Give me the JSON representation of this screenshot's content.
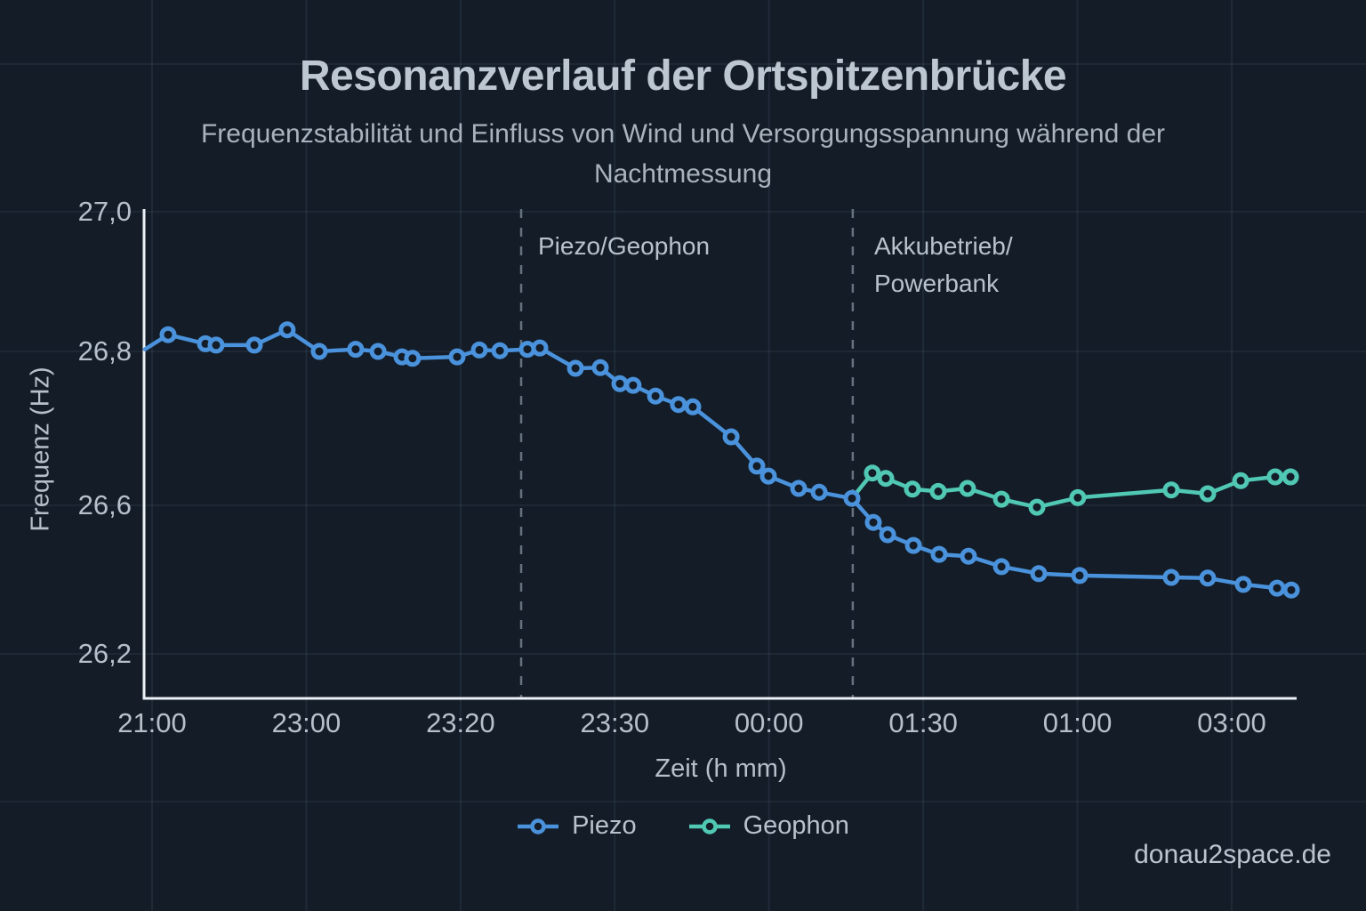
{
  "page": {
    "background": "#131c27",
    "watermark": "donau2space.de"
  },
  "chart_data": {
    "type": "line",
    "title": "Resonanzverlauf der Ortspitzenbrücke",
    "subtitle_lines": [
      "Frequenzstabilität und Einfluss von Wind und Versorgungsspannung während der",
      "Nachtmessung"
    ],
    "xlabel": "Zeit (h mm)",
    "ylabel": "Frequenz (Hz)",
    "x_tick_labels": [
      "21:00",
      "23:00",
      "23:20",
      "23:30",
      "00:00",
      "01:30",
      "01:00",
      "03:00"
    ],
    "y_tick_labels": [
      "27,0",
      "26,8",
      "26,6",
      "26,2"
    ],
    "y_tick_values": [
      27.0,
      26.8,
      26.6,
      26.2
    ],
    "x_encoding": "t = x-axis tick index (0 = 21:00 tick, 7 = 03:00 tick); hz = Frequenz in Hz",
    "grid": true,
    "legend_position": "bottom-center",
    "colors": {
      "piezo": "#4a92dc",
      "geophon": "#50c8b4",
      "axis": "#eef2f6",
      "dashed": "#67727f",
      "text": "#b8c2cc"
    },
    "annotations": [
      {
        "t": 2.393,
        "lines": [
          "Piezo/Geophon"
        ]
      },
      {
        "t": 4.543,
        "lines": [
          "Akkubetrieb/",
          "Powerbank"
        ]
      }
    ],
    "series": [
      {
        "name": "Piezo",
        "color": "#4a92dc",
        "skip_first_marker": true,
        "points": [
          [
            -0.046,
            26.803
          ],
          [
            0.104,
            26.824
          ],
          [
            0.346,
            26.811
          ],
          [
            0.415,
            26.809
          ],
          [
            0.663,
            26.809
          ],
          [
            0.876,
            26.831
          ],
          [
            1.084,
            26.8
          ],
          [
            1.32,
            26.803
          ],
          [
            1.465,
            26.8
          ],
          [
            1.62,
            26.793
          ],
          [
            1.689,
            26.791
          ],
          [
            1.978,
            26.793
          ],
          [
            2.122,
            26.802
          ],
          [
            2.255,
            26.801
          ],
          [
            2.433,
            26.803
          ],
          [
            2.514,
            26.805
          ],
          [
            2.745,
            26.778
          ],
          [
            2.906,
            26.779
          ],
          [
            3.033,
            26.758
          ],
          [
            3.119,
            26.756
          ],
          [
            3.264,
            26.742
          ],
          [
            3.413,
            26.731
          ],
          [
            3.506,
            26.728
          ],
          [
            3.754,
            26.689
          ],
          [
            3.921,
            26.651
          ],
          [
            3.996,
            26.638
          ],
          [
            4.192,
            26.622
          ],
          [
            4.325,
            26.617
          ],
          [
            4.538,
            26.609
          ],
          [
            4.676,
            26.554
          ],
          [
            4.769,
            26.521
          ],
          [
            4.936,
            26.492
          ],
          [
            5.103,
            26.468
          ],
          [
            5.293,
            26.463
          ],
          [
            5.507,
            26.435
          ],
          [
            5.749,
            26.416
          ],
          [
            6.014,
            26.411
          ],
          [
            6.608,
            26.406
          ],
          [
            6.844,
            26.404
          ],
          [
            7.075,
            26.387
          ],
          [
            7.294,
            26.377
          ],
          [
            7.386,
            26.372
          ]
        ]
      },
      {
        "name": "Geophon",
        "color": "#50c8b4",
        "skip_first_marker": true,
        "points": [
          [
            4.538,
            26.609
          ],
          [
            4.67,
            26.642
          ],
          [
            4.757,
            26.635
          ],
          [
            4.93,
            26.621
          ],
          [
            5.097,
            26.618
          ],
          [
            5.287,
            26.622
          ],
          [
            5.507,
            26.608
          ],
          [
            5.737,
            26.595
          ],
          [
            6.002,
            26.61
          ],
          [
            6.608,
            26.62
          ],
          [
            6.844,
            26.615
          ],
          [
            7.058,
            26.632
          ],
          [
            7.282,
            26.637
          ],
          [
            7.381,
            26.637
          ]
        ]
      }
    ]
  }
}
